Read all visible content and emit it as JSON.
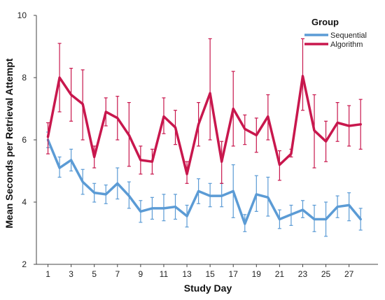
{
  "chart_data": {
    "type": "line",
    "xlabel": "Study Day",
    "ylabel": "Mean Seconds per Retrieval Attempt",
    "xlim": [
      0,
      29.5
    ],
    "ylim": [
      2,
      10
    ],
    "x_ticks": [
      "1",
      "3",
      "5",
      "7",
      "9",
      "11",
      "13",
      "15",
      "17",
      "19",
      "21",
      "23",
      "25",
      "27"
    ],
    "y_ticks": [
      "2",
      "4",
      "6",
      "8",
      "10"
    ],
    "grid": false,
    "legend": {
      "title": "Group",
      "placement": "top-right"
    },
    "x": [
      1,
      2,
      3,
      4,
      5,
      6,
      7,
      8,
      9,
      10,
      11,
      12,
      13,
      14,
      15,
      16,
      17,
      18,
      19,
      20,
      21,
      22,
      23,
      24,
      25,
      26,
      27,
      28
    ],
    "series": [
      {
        "name": "Sequential",
        "color": "#5b9bd5",
        "values": [
          6.0,
          5.1,
          5.35,
          4.65,
          4.3,
          4.25,
          4.6,
          4.2,
          3.7,
          3.8,
          3.8,
          3.85,
          3.55,
          4.35,
          4.2,
          4.2,
          4.35,
          3.3,
          4.25,
          4.15,
          3.45,
          3.6,
          3.75,
          3.45,
          3.45,
          3.85,
          3.9,
          3.45
        ],
        "err_low": [
          5.75,
          4.8,
          5.0,
          4.25,
          4.0,
          3.95,
          4.1,
          3.8,
          3.35,
          3.45,
          3.4,
          3.45,
          3.2,
          3.95,
          3.85,
          3.85,
          3.5,
          3.05,
          3.7,
          3.55,
          3.15,
          3.25,
          3.5,
          3.05,
          2.9,
          3.5,
          3.4,
          3.1
        ],
        "err_high": [
          6.25,
          5.45,
          5.7,
          5.05,
          4.6,
          4.55,
          5.1,
          4.65,
          4.05,
          4.15,
          4.25,
          4.25,
          3.9,
          4.75,
          4.6,
          4.6,
          5.2,
          3.6,
          4.85,
          4.8,
          3.75,
          3.9,
          4.05,
          3.9,
          4.0,
          4.2,
          4.3,
          3.8
        ]
      },
      {
        "name": "Algorithm",
        "color": "#c8174d",
        "values": [
          6.1,
          8.0,
          7.45,
          7.15,
          5.45,
          6.9,
          6.7,
          6.15,
          5.35,
          5.3,
          6.75,
          6.4,
          4.9,
          6.5,
          7.5,
          5.3,
          7.0,
          6.35,
          6.15,
          6.75,
          5.2,
          5.55,
          8.05,
          6.3,
          5.95,
          6.55,
          6.45,
          6.5
        ],
        "err_low": [
          5.55,
          6.9,
          6.6,
          6.0,
          5.1,
          6.45,
          6.0,
          5.15,
          4.9,
          4.9,
          6.2,
          5.85,
          4.6,
          5.8,
          6.0,
          4.6,
          5.8,
          5.85,
          5.6,
          6.0,
          4.7,
          5.45,
          6.95,
          5.1,
          5.3,
          5.95,
          5.8,
          5.7
        ],
        "err_high": [
          6.55,
          9.1,
          8.3,
          8.25,
          5.8,
          7.35,
          7.4,
          7.2,
          5.8,
          5.7,
          7.35,
          6.95,
          5.3,
          7.2,
          9.25,
          5.95,
          8.2,
          6.8,
          6.7,
          7.45,
          5.65,
          5.7,
          9.25,
          7.45,
          6.6,
          7.2,
          7.1,
          7.3
        ]
      }
    ]
  }
}
